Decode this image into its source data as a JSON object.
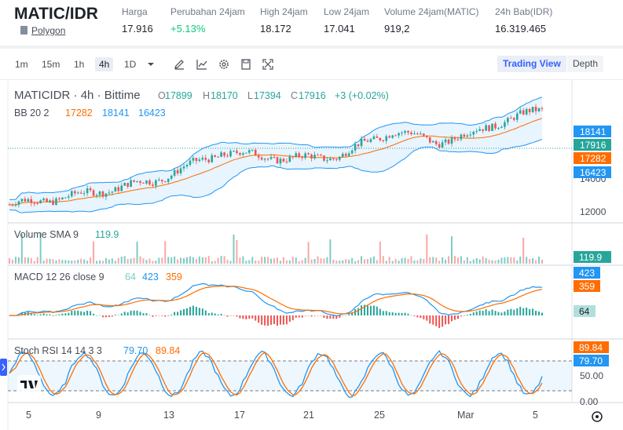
{
  "header": {
    "pair": "MATIC/IDR",
    "pair_sub": "Polygon",
    "stats": [
      {
        "label": "Harga",
        "value": "17.916"
      },
      {
        "label": "Perubahan 24jam",
        "value": "+5.13%"
      },
      {
        "label": "High 24jam",
        "value": "18.172"
      },
      {
        "label": "Low 24jam",
        "value": "17.041"
      },
      {
        "label": "Volume 24jam(MATIC)",
        "value": "919,2"
      },
      {
        "label": "24h Bab(IDR)",
        "value": "16.319.465"
      }
    ]
  },
  "toolbar": {
    "timeframes": [
      "1m",
      "15m",
      "1h",
      "4h",
      "1D"
    ],
    "active_timeframe": "4h",
    "trading_view": "Trading View",
    "depth": "Depth",
    "icons": [
      "dropdown-icon",
      "pencil-icon",
      "line-chart-icon",
      "gear-icon",
      "save-icon",
      "fullscreen-icon"
    ]
  },
  "main_legend": {
    "symbol": "MATICIDR · 4h · Bittime",
    "o_label": "O",
    "o": "17899",
    "h_label": "H",
    "h": "18170",
    "l_label": "L",
    "l": "17394",
    "c_label": "C",
    "c": "17916",
    "change": "+3 (+0.02%)",
    "bb_label": "BB 20 2",
    "bb_basis": "17282",
    "bb_upper": "18141",
    "bb_lower": "16423"
  },
  "price_axis": {
    "ticks": [
      "14000",
      "12000"
    ],
    "badges": [
      {
        "text": "18141",
        "color": "#2196f3"
      },
      {
        "text": "17916",
        "color": "#26a69a"
      },
      {
        "text": "17282",
        "color": "#ff6d00"
      },
      {
        "text": "16423",
        "color": "#2196f3"
      }
    ]
  },
  "volume": {
    "label": "Volume SMA 9",
    "value": "119.9",
    "badge": "119.9"
  },
  "macd": {
    "label": "MACD 12 26 close 9",
    "hist": "64",
    "macd": "423",
    "signal": "359",
    "badges": [
      "423",
      "359",
      "64"
    ]
  },
  "stoch": {
    "label": "Stoch RSI 14 14 3 3",
    "k": "79.70",
    "d": "89.84",
    "axis": [
      "50.00",
      "0.00"
    ],
    "badges": [
      "89.84",
      "79.70"
    ]
  },
  "time_axis": [
    "5",
    "9",
    "13",
    "17",
    "21",
    "25",
    "Mar",
    "5"
  ],
  "colors": {
    "up": "#26a69a",
    "down": "#ef5350",
    "bb": "#2196f3",
    "basis": "#ff6d00",
    "accent": "#3861fb"
  }
}
